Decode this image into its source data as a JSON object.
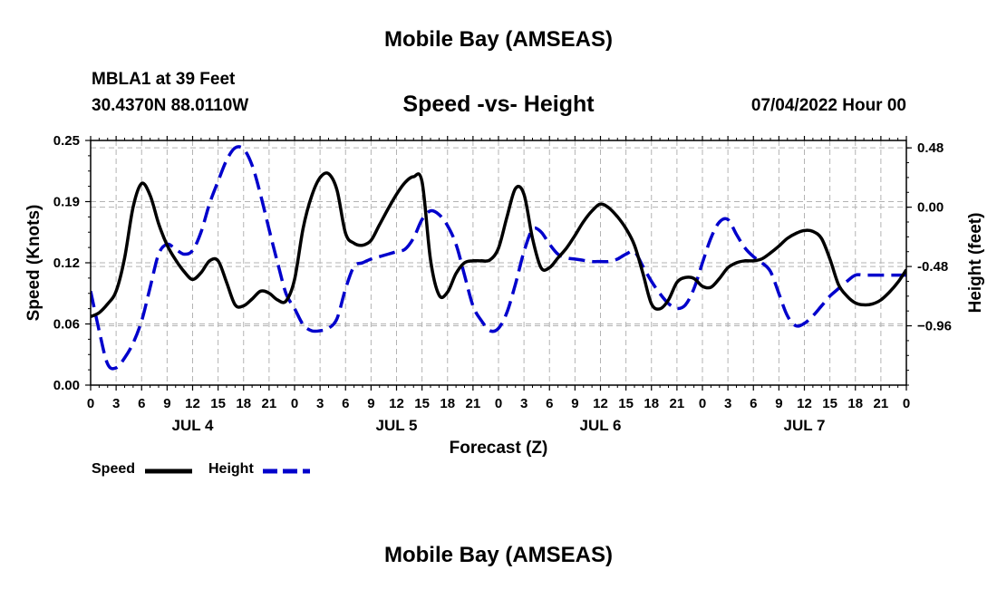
{
  "page": {
    "title_top": "Mobile Bay (AMSEAS)",
    "title_bottom": "Mobile Bay (AMSEAS)",
    "station_name": "MBLA1 at 39 Feet",
    "station_coords": "30.4370N  88.0110W",
    "chart_title": "Speed -vs- Height",
    "datetime": "07/04/2022 Hour 00"
  },
  "legend": {
    "speed_label": "Speed",
    "height_label": "Height"
  },
  "colors": {
    "speed": "#000000",
    "height": "#0000cc",
    "grid": "#b3b3b3"
  },
  "chart_data": {
    "type": "line",
    "title": "Speed -vs- Height",
    "xlabel": "Forecast (Z)",
    "ylabel_left": "Speed (Knots)",
    "ylabel_right": "Height (feet)",
    "x_range_hours": [
      0,
      96
    ],
    "x_tick_step_hours": 3,
    "x_tick_labels": [
      "0",
      "3",
      "6",
      "9",
      "12",
      "15",
      "18",
      "21",
      "0",
      "3",
      "6",
      "9",
      "12",
      "15",
      "18",
      "21",
      "0",
      "3",
      "6",
      "9",
      "12",
      "15",
      "18",
      "21",
      "0",
      "3",
      "6",
      "9",
      "12",
      "15",
      "18",
      "21",
      "0"
    ],
    "day_labels": [
      {
        "label": "JUL 4",
        "hour": 12
      },
      {
        "label": "JUL 5",
        "hour": 36
      },
      {
        "label": "JUL 6",
        "hour": 60
      },
      {
        "label": "JUL 7",
        "hour": 84
      }
    ],
    "ylim_left": [
      0,
      0.25
    ],
    "yticks_left": [
      {
        "value": 0.0,
        "label": "0.00"
      },
      {
        "value": 0.0625,
        "label": "0.06"
      },
      {
        "value": 0.125,
        "label": "0.12"
      },
      {
        "value": 0.1875,
        "label": "0.19"
      },
      {
        "value": 0.25,
        "label": "0.25"
      }
    ],
    "ylim_right": [
      -1.44,
      0.54
    ],
    "yticks_right": [
      {
        "value": 0.48,
        "label": "0.48"
      },
      {
        "value": 0.0,
        "label": "0.00"
      },
      {
        "value": -0.48,
        "label": "-0.48"
      },
      {
        "value": -0.96,
        "label": "−0.96"
      }
    ],
    "series": [
      {
        "name": "Speed",
        "axis": "left",
        "style": "solid",
        "x": [
          0,
          1,
          2,
          3,
          4,
          5,
          6,
          7,
          8,
          9,
          10,
          11,
          12,
          13,
          14,
          15,
          16,
          17,
          18,
          19,
          20,
          21,
          22,
          23,
          24,
          25,
          26,
          27,
          28,
          29,
          30,
          31,
          32,
          33,
          34,
          35,
          36,
          37,
          38,
          39,
          40,
          41,
          42,
          43,
          44,
          45,
          46,
          47,
          48,
          49,
          50,
          51,
          52,
          53,
          54,
          55,
          56,
          57,
          58,
          59,
          60,
          61,
          62,
          63,
          64,
          65,
          66,
          67,
          68,
          69,
          70,
          71,
          72,
          73,
          74,
          75,
          76,
          77,
          78,
          79,
          80,
          81,
          82,
          83,
          84,
          85,
          86,
          87,
          88,
          89,
          90,
          91,
          92,
          93,
          94,
          95,
          96
        ],
        "values": [
          0.07,
          0.074,
          0.083,
          0.096,
          0.13,
          0.182,
          0.206,
          0.194,
          0.165,
          0.143,
          0.128,
          0.116,
          0.108,
          0.115,
          0.127,
          0.127,
          0.105,
          0.082,
          0.081,
          0.088,
          0.096,
          0.094,
          0.087,
          0.086,
          0.108,
          0.16,
          0.193,
          0.212,
          0.216,
          0.199,
          0.155,
          0.145,
          0.143,
          0.148,
          0.164,
          0.18,
          0.195,
          0.207,
          0.213,
          0.208,
          0.128,
          0.092,
          0.095,
          0.114,
          0.125,
          0.127,
          0.127,
          0.128,
          0.14,
          0.172,
          0.201,
          0.195,
          0.15,
          0.12,
          0.12,
          0.13,
          0.14,
          0.153,
          0.167,
          0.178,
          0.185,
          0.181,
          0.172,
          0.16,
          0.143,
          0.114,
          0.083,
          0.078,
          0.087,
          0.105,
          0.11,
          0.109,
          0.101,
          0.1,
          0.109,
          0.12,
          0.125,
          0.127,
          0.127,
          0.129,
          0.135,
          0.142,
          0.15,
          0.155,
          0.158,
          0.157,
          0.15,
          0.129,
          0.103,
          0.091,
          0.084,
          0.082,
          0.083,
          0.087,
          0.095,
          0.105,
          0.118
        ]
      },
      {
        "name": "Height",
        "axis": "right",
        "style": "dashed",
        "x": [
          0,
          1,
          2,
          3,
          4,
          5,
          6,
          7,
          8,
          9,
          10,
          11,
          12,
          13,
          14,
          15,
          16,
          17,
          18,
          19,
          20,
          21,
          22,
          23,
          24,
          25,
          26,
          27,
          28,
          29,
          30,
          31,
          32,
          33,
          34,
          35,
          36,
          37,
          38,
          39,
          40,
          41,
          42,
          43,
          44,
          45,
          46,
          47,
          48,
          49,
          50,
          51,
          52,
          53,
          54,
          55,
          56,
          57,
          58,
          59,
          60,
          61,
          62,
          63,
          64,
          65,
          66,
          67,
          68,
          69,
          70,
          71,
          72,
          73,
          74,
          75,
          76,
          77,
          78,
          79,
          80,
          81,
          82,
          83,
          84,
          85,
          86,
          87,
          88,
          89,
          90,
          91,
          92,
          93,
          94,
          95,
          96
        ],
        "values": [
          -0.68,
          -1.0,
          -1.27,
          -1.3,
          -1.22,
          -1.1,
          -0.92,
          -0.65,
          -0.38,
          -0.3,
          -0.34,
          -0.38,
          -0.35,
          -0.2,
          0.03,
          0.21,
          0.38,
          0.48,
          0.47,
          0.34,
          0.1,
          -0.18,
          -0.45,
          -0.7,
          -0.82,
          -0.95,
          -1.0,
          -1.0,
          -0.98,
          -0.9,
          -0.66,
          -0.48,
          -0.45,
          -0.42,
          -0.4,
          -0.38,
          -0.36,
          -0.34,
          -0.25,
          -0.1,
          -0.03,
          -0.06,
          -0.15,
          -0.3,
          -0.55,
          -0.8,
          -0.92,
          -1.0,
          -0.98,
          -0.85,
          -0.62,
          -0.36,
          -0.18,
          -0.2,
          -0.3,
          -0.38,
          -0.41,
          -0.42,
          -0.43,
          -0.44,
          -0.44,
          -0.44,
          -0.42,
          -0.38,
          -0.36,
          -0.48,
          -0.6,
          -0.7,
          -0.78,
          -0.82,
          -0.79,
          -0.66,
          -0.45,
          -0.25,
          -0.12,
          -0.1,
          -0.22,
          -0.33,
          -0.4,
          -0.45,
          -0.52,
          -0.7,
          -0.88,
          -0.96,
          -0.94,
          -0.88,
          -0.8,
          -0.72,
          -0.66,
          -0.6,
          -0.55,
          -0.55,
          -0.55,
          -0.55,
          -0.55,
          -0.55,
          -0.55
        ]
      }
    ]
  }
}
